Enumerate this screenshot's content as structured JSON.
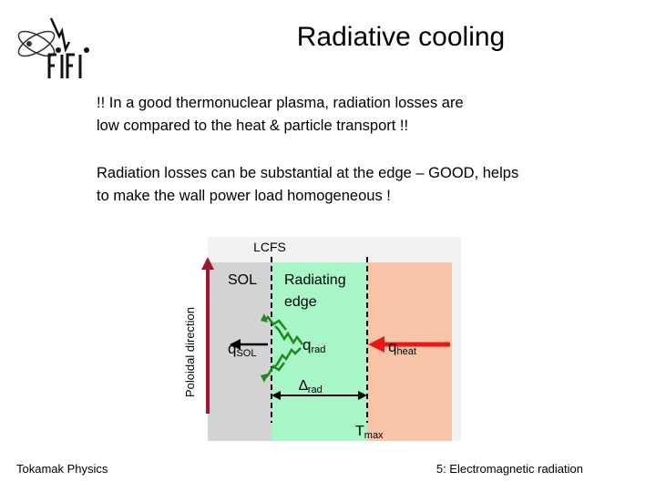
{
  "header": {
    "title": "Radiative cooling"
  },
  "content": {
    "paragraph1": [
      "!! In a good thermonuclear plasma, radiation losses are",
      "low compared to the heat & particle transport !!"
    ],
    "paragraph2": [
      "Radiation losses can be substantial at the edge – GOOD, helps",
      "to make the wall power load homogeneous !"
    ]
  },
  "diagram": {
    "lcfs": "LCFS",
    "poloidal_label": "Poloidal direction",
    "sol": "SOL",
    "radiating_line1": "Radiating",
    "radiating_line2": "edge",
    "q_sol": {
      "base": "q",
      "sub": "SOL"
    },
    "q_rad": {
      "base": "q",
      "sub": "rad"
    },
    "q_heat": {
      "base": "q",
      "sub": "heat"
    },
    "delta_rad": {
      "base": "∆",
      "sub": "rad"
    },
    "t_max": {
      "base": "T",
      "sub": "max"
    },
    "colors": {
      "sol_region": "#d3d3d3",
      "radiating_region": "#a8f5c8",
      "core_region": "#f7c4a8",
      "arrow_poloidal": "#a01830",
      "arrow_heat": "#e81818",
      "wave": "#1a8a1a"
    }
  },
  "footer": {
    "left": "Tokamak Physics",
    "right": "5: Electromagnetic radiation"
  }
}
